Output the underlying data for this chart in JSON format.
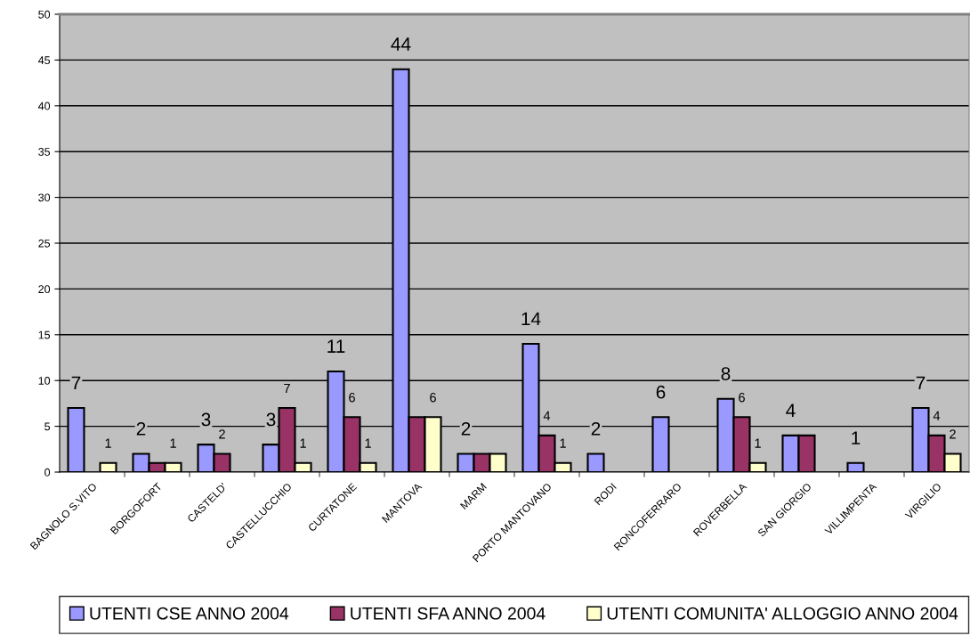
{
  "chart_data": {
    "type": "bar",
    "categories": [
      "BAGNOLO S.VITO",
      "BORGOFORT",
      "CASTELD'",
      "CASTELLUCCHIO",
      "CURTATONE",
      "MANTOVA",
      "MARM",
      "PORTO MANTOVANO",
      "RODI",
      "RONCOFERRARO",
      "ROVERBELLA",
      "SAN GIORGIO",
      "VILLIMPENTA",
      "VIRGILIO"
    ],
    "series": [
      {
        "name": "UTENTI CSE ANNO 2004",
        "color": "#9999ff",
        "values": [
          7,
          2,
          3,
          3,
          11,
          44,
          2,
          14,
          2,
          6,
          8,
          4,
          1,
          7
        ],
        "value_labels": [
          "7",
          "2",
          "3",
          "3",
          "11",
          "44",
          "2",
          "14",
          "2",
          "6",
          "8",
          "4",
          "1",
          "7"
        ]
      },
      {
        "name": "UTENTI SFA ANNO 2004",
        "color": "#993366",
        "values": [
          null,
          1,
          2,
          7,
          6,
          6,
          2,
          4,
          null,
          null,
          6,
          4,
          null,
          4
        ],
        "value_labels": [
          null,
          null,
          "2",
          "7",
          "6",
          null,
          null,
          "4",
          null,
          null,
          "6",
          null,
          null,
          "4"
        ]
      },
      {
        "name": "UTENTI COMUNITA' ALLOGGIO ANNO 2004",
        "color": "#ffffcc",
        "values": [
          1,
          1,
          null,
          1,
          1,
          6,
          2,
          1,
          null,
          null,
          1,
          null,
          null,
          2
        ],
        "value_labels": [
          "1",
          "1",
          null,
          "1",
          "1",
          "6",
          null,
          "1",
          null,
          null,
          "1",
          null,
          null,
          "2"
        ]
      }
    ],
    "ylim": [
      0,
      50
    ],
    "yticks": [
      0,
      5,
      10,
      15,
      20,
      25,
      30,
      35,
      40,
      45,
      50
    ],
    "grid": "y",
    "legend": "bottom"
  }
}
